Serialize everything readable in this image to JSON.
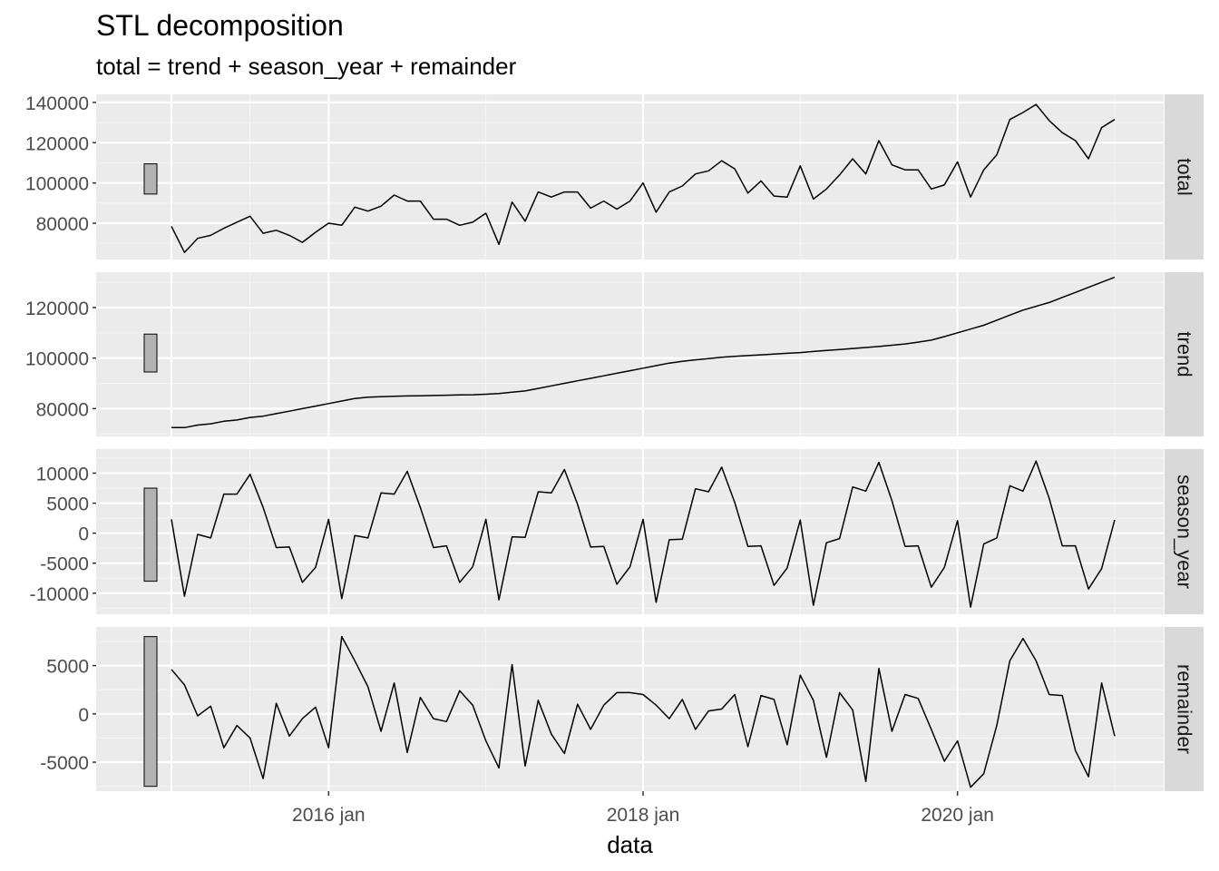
{
  "chart_data": {
    "type": "line",
    "title": "STL decomposition",
    "subtitle": "total = trend + season_year + remainder",
    "xlabel": "data",
    "x_start": "2015 jan",
    "frequency": "monthly",
    "x_ticks": [
      "2016 jan",
      "2018 jan",
      "2020 jan"
    ],
    "panels": [
      {
        "name": "total",
        "ylim": [
          62000,
          144000
        ],
        "yticks": [
          "80000",
          "100000",
          "120000",
          "140000"
        ],
        "scale_bar": [
          94500,
          109500
        ],
        "values": [
          78500,
          65500,
          72500,
          74000,
          77500,
          80500,
          83500,
          75000,
          76500,
          74000,
          70500,
          75500,
          80000,
          79000,
          88000,
          86000,
          88500,
          94000,
          91000,
          91000,
          82000,
          82000,
          79000,
          80500,
          85000,
          69500,
          90500,
          81000,
          95500,
          93000,
          95500,
          95500,
          87500,
          91000,
          87000,
          91000,
          100000,
          85500,
          95500,
          98500,
          104500,
          106000,
          111000,
          107000,
          95000,
          101000,
          93500,
          93000,
          108500,
          92000,
          97000,
          104000,
          112000,
          104500,
          121000,
          109000,
          106500,
          106500,
          97000,
          99000,
          110500,
          93000,
          106500,
          114000,
          131500,
          135000,
          139000,
          131000,
          125000,
          121000,
          112000,
          127500,
          131500
        ]
      },
      {
        "name": "trend",
        "ylim": [
          69000,
          134000
        ],
        "yticks": [
          "80000",
          "100000",
          "120000"
        ],
        "scale_bar": [
          94500,
          109500
        ],
        "values": [
          72500,
          72500,
          73500,
          74000,
          75000,
          75500,
          76500,
          77000,
          78000,
          79000,
          80000,
          81000,
          82000,
          83000,
          84000,
          84500,
          84700,
          84900,
          85000,
          85100,
          85200,
          85300,
          85400,
          85500,
          85700,
          86000,
          86500,
          87000,
          88000,
          89000,
          90000,
          91000,
          92000,
          93000,
          94000,
          95000,
          96000,
          97000,
          98000,
          98700,
          99300,
          99800,
          100300,
          100700,
          101000,
          101300,
          101600,
          101900,
          102200,
          102600,
          103000,
          103400,
          103800,
          104200,
          104600,
          105100,
          105600,
          106300,
          107100,
          108500,
          110000,
          111500,
          113000,
          115000,
          117000,
          119000,
          120500,
          122000,
          124000,
          126000,
          128000,
          130000,
          132000
        ]
      },
      {
        "name": "season_year",
        "ylim": [
          -13500,
          14000
        ],
        "yticks": [
          "-10000",
          "-5000",
          "0",
          "5000",
          "10000"
        ],
        "scale_bar": [
          -8000,
          7500
        ],
        "values": [
          2300,
          -10500,
          -200,
          -800,
          6500,
          6500,
          9800,
          4300,
          -2400,
          -2300,
          -8200,
          -5700,
          2300,
          -10900,
          -400,
          -800,
          6700,
          6500,
          10300,
          4300,
          -2400,
          -2100,
          -8200,
          -5600,
          2300,
          -11100,
          -600,
          -700,
          6900,
          6700,
          10600,
          4800,
          -2300,
          -2200,
          -8500,
          -5600,
          2300,
          -11500,
          -1100,
          -1000,
          7400,
          6900,
          11000,
          5100,
          -2200,
          -2100,
          -8700,
          -5800,
          2200,
          -12000,
          -1600,
          -900,
          7700,
          7000,
          11800,
          5400,
          -2200,
          -2100,
          -9000,
          -5700,
          2100,
          -12300,
          -1800,
          -800,
          7900,
          7000,
          12000,
          5800,
          -2100,
          -2100,
          -9300,
          -5900,
          2200
        ]
      },
      {
        "name": "remainder",
        "ylim": [
          -8000,
          9000
        ],
        "yticks": [
          "-5000",
          "0",
          "5000"
        ],
        "scale_bar": [
          -7500,
          8000
        ],
        "values": [
          4600,
          3000,
          -200,
          800,
          -3500,
          -1200,
          -2500,
          -6700,
          1100,
          -2300,
          -500,
          700,
          -3500,
          8000,
          5500,
          2800,
          -1800,
          3200,
          -4000,
          1700,
          -500,
          -800,
          2400,
          900,
          -2800,
          -5600,
          5100,
          -5400,
          1400,
          -2100,
          -4100,
          1000,
          -1600,
          900,
          2200,
          2200,
          2000,
          900,
          -500,
          1500,
          -1600,
          300,
          500,
          2000,
          -3400,
          1900,
          1500,
          -3200,
          4000,
          1400,
          -4500,
          2200,
          400,
          -7000,
          4700,
          -1800,
          2000,
          1600,
          -1600,
          -4900,
          -2800,
          -7600,
          -6200,
          -1200,
          5500,
          7800,
          5500,
          2000,
          1900,
          -3800,
          -6500,
          3200,
          -2300
        ]
      }
    ]
  }
}
